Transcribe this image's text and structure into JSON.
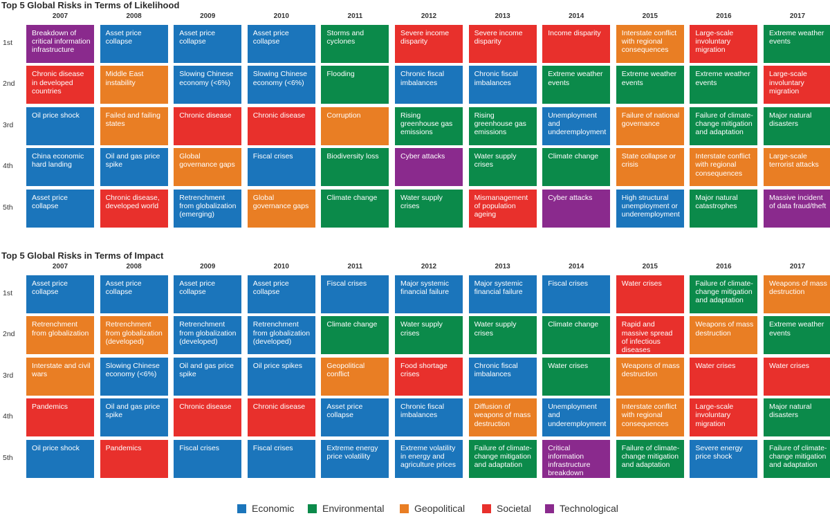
{
  "categories_legend": [
    {
      "key": "E",
      "label": "Economic",
      "color": "#1b75bb"
    },
    {
      "key": "N",
      "label": "Environmental",
      "color": "#0b8a4a"
    },
    {
      "key": "G",
      "label": "Geopolitical",
      "color": "#e97e24"
    },
    {
      "key": "S",
      "label": "Societal",
      "color": "#e8302c"
    },
    {
      "key": "T",
      "label": "Technological",
      "color": "#8a2a8d"
    }
  ],
  "chart_data": [
    {
      "type": "table",
      "title": "Top 5 Global Risks in Terms of Likelihood",
      "years": [
        "2007",
        "2008",
        "2009",
        "2010",
        "2011",
        "2012",
        "2013",
        "2014",
        "2015",
        "2016",
        "2017"
      ],
      "ranks": [
        "1st",
        "2nd",
        "3rd",
        "4th",
        "5th"
      ],
      "cells": [
        [
          {
            "text": "Breakdown of critical information infrastructure",
            "cat": "T"
          },
          {
            "text": "Asset price collapse",
            "cat": "E"
          },
          {
            "text": "Asset price collapse",
            "cat": "E"
          },
          {
            "text": "Asset price collapse",
            "cat": "E"
          },
          {
            "text": "Storms and cyclones",
            "cat": "N"
          },
          {
            "text": "Severe income disparity",
            "cat": "S"
          },
          {
            "text": "Severe income disparity",
            "cat": "S"
          },
          {
            "text": "Income disparity",
            "cat": "S"
          },
          {
            "text": "Interstate conflict with regional consequences",
            "cat": "G"
          },
          {
            "text": "Large-scale involuntary migration",
            "cat": "S"
          },
          {
            "text": "Extreme weather events",
            "cat": "N"
          }
        ],
        [
          {
            "text": "Chronic disease in developed countries",
            "cat": "S"
          },
          {
            "text": "Middle East instability",
            "cat": "G"
          },
          {
            "text": "Slowing Chinese economy (<6%)",
            "cat": "E"
          },
          {
            "text": "Slowing Chinese economy (<6%)",
            "cat": "E"
          },
          {
            "text": "Flooding",
            "cat": "N"
          },
          {
            "text": "Chronic fiscal imbalances",
            "cat": "E"
          },
          {
            "text": "Chronic fiscal imbalances",
            "cat": "E"
          },
          {
            "text": "Extreme weather events",
            "cat": "N"
          },
          {
            "text": "Extreme weather events",
            "cat": "N"
          },
          {
            "text": "Extreme weather events",
            "cat": "N"
          },
          {
            "text": "Large-scale involuntary migration",
            "cat": "S"
          }
        ],
        [
          {
            "text": "Oil price shock",
            "cat": "E"
          },
          {
            "text": "Failed and failing states",
            "cat": "G"
          },
          {
            "text": "Chronic disease",
            "cat": "S"
          },
          {
            "text": "Chronic disease",
            "cat": "S"
          },
          {
            "text": "Corruption",
            "cat": "G"
          },
          {
            "text": "Rising greenhouse gas emissions",
            "cat": "N"
          },
          {
            "text": "Rising greenhouse gas emissions",
            "cat": "N"
          },
          {
            "text": "Unemployment and underemployment",
            "cat": "E"
          },
          {
            "text": "Failure of national governance",
            "cat": "G"
          },
          {
            "text": "Failure of climate-change mitigation and adaptation",
            "cat": "N"
          },
          {
            "text": "Major natural disasters",
            "cat": "N"
          }
        ],
        [
          {
            "text": "China economic hard landing",
            "cat": "E"
          },
          {
            "text": "Oil and gas price spike",
            "cat": "E"
          },
          {
            "text": "Global governance gaps",
            "cat": "G"
          },
          {
            "text": "Fiscal crises",
            "cat": "E"
          },
          {
            "text": "Biodiversity loss",
            "cat": "N"
          },
          {
            "text": "Cyber attacks",
            "cat": "T"
          },
          {
            "text": "Water supply crises",
            "cat": "N"
          },
          {
            "text": "Climate change",
            "cat": "N"
          },
          {
            "text": "State collapse or crisis",
            "cat": "G"
          },
          {
            "text": "Interstate conflict with regional consequences",
            "cat": "G"
          },
          {
            "text": "Large-scale terrorist attacks",
            "cat": "G"
          }
        ],
        [
          {
            "text": "Asset price collapse",
            "cat": "E"
          },
          {
            "text": "Chronic disease, developed world",
            "cat": "S"
          },
          {
            "text": "Retrenchment from globalization (emerging)",
            "cat": "E"
          },
          {
            "text": "Global governance gaps",
            "cat": "G"
          },
          {
            "text": "Climate change",
            "cat": "N"
          },
          {
            "text": "Water supply crises",
            "cat": "N"
          },
          {
            "text": "Mismanagement of population ageing",
            "cat": "S"
          },
          {
            "text": "Cyber attacks",
            "cat": "T"
          },
          {
            "text": "High structural unemployment or underemployment",
            "cat": "E"
          },
          {
            "text": "Major natural catastrophes",
            "cat": "N"
          },
          {
            "text": "Massive incident of data fraud/theft",
            "cat": "T"
          }
        ]
      ]
    },
    {
      "type": "table",
      "title": "Top 5 Global Risks in Terms of Impact",
      "years": [
        "2007",
        "2008",
        "2009",
        "2010",
        "2011",
        "2012",
        "2013",
        "2014",
        "2015",
        "2016",
        "2017"
      ],
      "ranks": [
        "1st",
        "2nd",
        "3rd",
        "4th",
        "5th"
      ],
      "cells": [
        [
          {
            "text": "Asset price collapse",
            "cat": "E"
          },
          {
            "text": "Asset price collapse",
            "cat": "E"
          },
          {
            "text": "Asset price collapse",
            "cat": "E"
          },
          {
            "text": "Asset price collapse",
            "cat": "E"
          },
          {
            "text": "Fiscal crises",
            "cat": "E"
          },
          {
            "text": "Major systemic financial failure",
            "cat": "E"
          },
          {
            "text": "Major systemic financial failure",
            "cat": "E"
          },
          {
            "text": "Fiscal crises",
            "cat": "E"
          },
          {
            "text": "Water crises",
            "cat": "S"
          },
          {
            "text": "Failure of climate-change mitigation and adaptation",
            "cat": "N"
          },
          {
            "text": "Weapons of mass destruction",
            "cat": "G"
          }
        ],
        [
          {
            "text": "Retrenchment from globalization",
            "cat": "G"
          },
          {
            "text": "Retrenchment from globalization (developed)",
            "cat": "G"
          },
          {
            "text": "Retrenchment from globalization (developed)",
            "cat": "E"
          },
          {
            "text": "Retrenchment from globalization (developed)",
            "cat": "E"
          },
          {
            "text": "Climate change",
            "cat": "N"
          },
          {
            "text": "Water supply crises",
            "cat": "N"
          },
          {
            "text": "Water supply crises",
            "cat": "N"
          },
          {
            "text": "Climate change",
            "cat": "N"
          },
          {
            "text": "Rapid and massive spread of infectious diseases",
            "cat": "S"
          },
          {
            "text": "Weapons of mass destruction",
            "cat": "G"
          },
          {
            "text": "Extreme weather events",
            "cat": "N"
          }
        ],
        [
          {
            "text": "Interstate and civil wars",
            "cat": "G"
          },
          {
            "text": "Slowing Chinese economy (<6%)",
            "cat": "E"
          },
          {
            "text": "Oil and gas price spike",
            "cat": "E"
          },
          {
            "text": "Oil price spikes",
            "cat": "E"
          },
          {
            "text": "Geopolitical conflict",
            "cat": "G"
          },
          {
            "text": "Food shortage crises",
            "cat": "S"
          },
          {
            "text": "Chronic fiscal imbalances",
            "cat": "E"
          },
          {
            "text": "Water crises",
            "cat": "N"
          },
          {
            "text": "Weapons of mass destruction",
            "cat": "G"
          },
          {
            "text": "Water crises",
            "cat": "S"
          },
          {
            "text": "Water crises",
            "cat": "S"
          }
        ],
        [
          {
            "text": "Pandemics",
            "cat": "S"
          },
          {
            "text": "Oil and gas price spike",
            "cat": "E"
          },
          {
            "text": "Chronic disease",
            "cat": "S"
          },
          {
            "text": "Chronic disease",
            "cat": "S"
          },
          {
            "text": "Asset price collapse",
            "cat": "E"
          },
          {
            "text": "Chronic fiscal imbalances",
            "cat": "E"
          },
          {
            "text": "Diffusion of weapons of mass destruction",
            "cat": "G"
          },
          {
            "text": "Unemployment and underemployment",
            "cat": "E"
          },
          {
            "text": "Interstate conflict with regional consequences",
            "cat": "G"
          },
          {
            "text": "Large-scale involuntary migration",
            "cat": "S"
          },
          {
            "text": "Major natural disasters",
            "cat": "N"
          }
        ],
        [
          {
            "text": "Oil price shock",
            "cat": "E"
          },
          {
            "text": "Pandemics",
            "cat": "S"
          },
          {
            "text": "Fiscal crises",
            "cat": "E"
          },
          {
            "text": "Fiscal crises",
            "cat": "E"
          },
          {
            "text": "Extreme energy price volatility",
            "cat": "E"
          },
          {
            "text": "Extreme volatility in energy and agriculture prices",
            "cat": "E"
          },
          {
            "text": "Failure of climate-change mitigation and adaptation",
            "cat": "N"
          },
          {
            "text": "Critical information infrastructure breakdown",
            "cat": "T"
          },
          {
            "text": "Failure of climate-change mitigation and adaptation",
            "cat": "N"
          },
          {
            "text": "Severe energy price shock",
            "cat": "E"
          },
          {
            "text": "Failure of climate-change mitigation and adaptation",
            "cat": "N"
          }
        ]
      ]
    }
  ]
}
